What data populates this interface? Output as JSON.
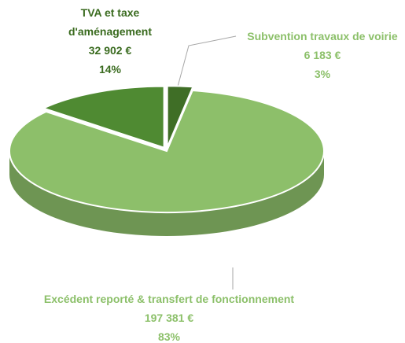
{
  "chart_data": {
    "type": "pie",
    "categories": [
      "Subvention travaux de voirie",
      "Excédent reporté & transfert de fonctionnement",
      "TVA et taxe d'aménagement"
    ],
    "values": [
      6183,
      197381,
      32902
    ],
    "value_labels": [
      "6 183 €",
      "197 381 €",
      "32 902 €"
    ],
    "percent_labels": [
      "3%",
      "83%",
      "14%"
    ],
    "colors": [
      "#3f6e26",
      "#8dbf6a",
      "#4f8a32"
    ],
    "label_colors": [
      "#8cc06a",
      "#8cc06a",
      "#3a6b1f"
    ]
  }
}
